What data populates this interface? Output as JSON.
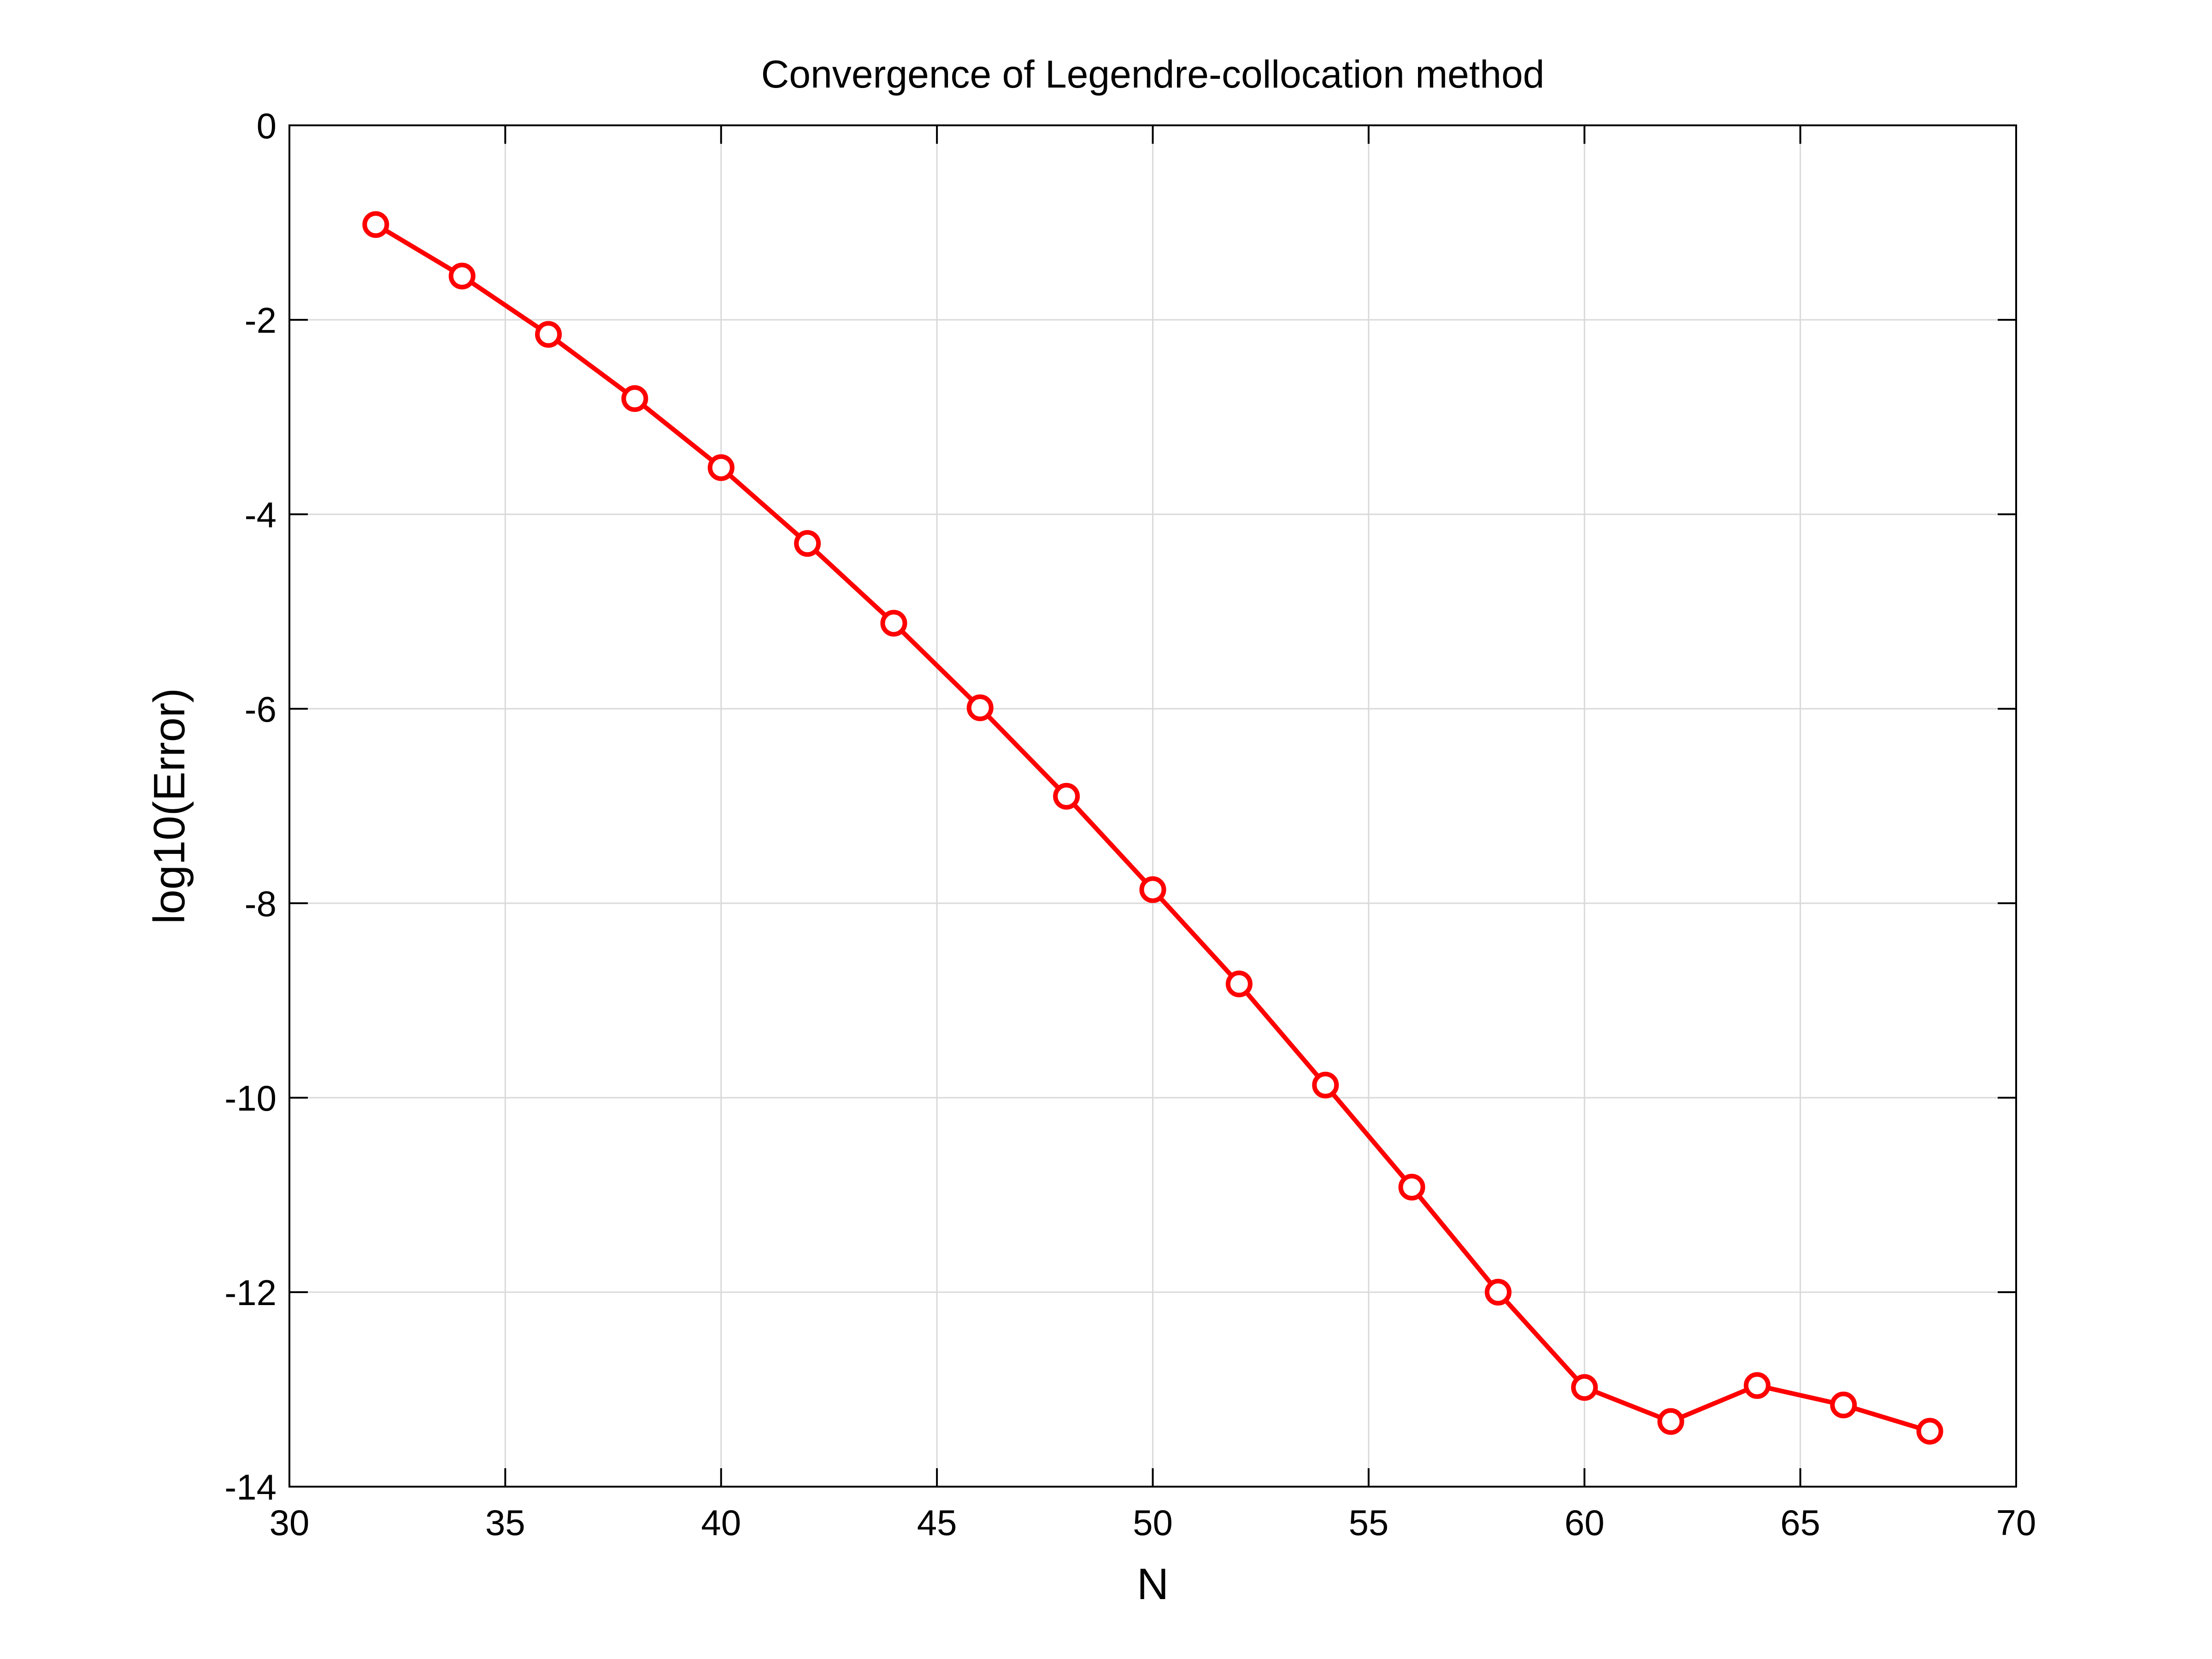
{
  "chart_data": {
    "type": "line",
    "title": "Convergence of Legendre-collocation method",
    "xlabel": "N",
    "ylabel": "log10(Error)",
    "xlim": [
      30,
      70
    ],
    "ylim": [
      -14,
      0
    ],
    "xticks": [
      30,
      35,
      40,
      45,
      50,
      55,
      60,
      65,
      70
    ],
    "yticks": [
      0,
      -2,
      -4,
      -6,
      -8,
      -10,
      -12,
      -14
    ],
    "grid": true,
    "series": [
      {
        "color": "#ff0000",
        "marker": "circle-open",
        "x": [
          32,
          34,
          36,
          38,
          40,
          42,
          44,
          46,
          48,
          50,
          52,
          54,
          56,
          58,
          60,
          62,
          64,
          66,
          68
        ],
        "y": [
          -1.02,
          -1.55,
          -2.15,
          -2.81,
          -3.52,
          -4.3,
          -5.12,
          -5.99,
          -6.9,
          -7.86,
          -8.83,
          -9.87,
          -10.92,
          -12.0,
          -12.98,
          -13.33,
          -12.96,
          -13.16,
          -13.43
        ]
      }
    ]
  }
}
